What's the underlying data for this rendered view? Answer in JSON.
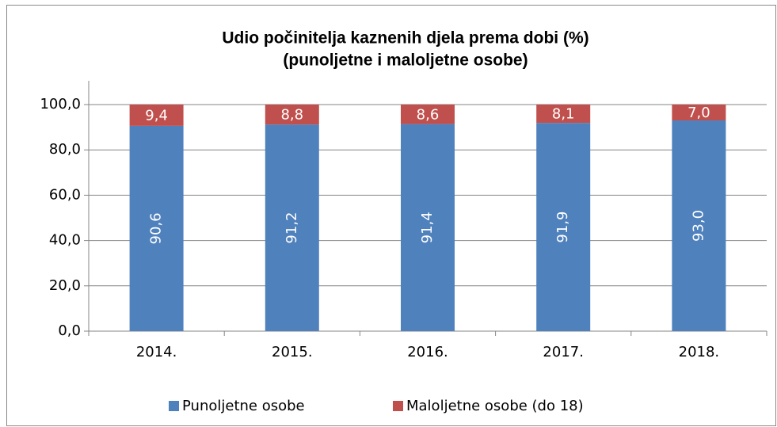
{
  "chart_data": {
    "type": "stacked_bar",
    "title": "Udio počinitelja kaznenih djela prema dobi  (%)",
    "subtitle": "(punoljetne i maloljetne osobe)",
    "categories": [
      "2014.",
      "2015.",
      "2016.",
      "2017.",
      "2018."
    ],
    "series": [
      {
        "name": "Punoljetne osobe",
        "color": "#4f81bd",
        "values": [
          90.6,
          91.2,
          91.4,
          91.9,
          93.0
        ],
        "value_labels": [
          "90,6",
          "91,2",
          "91,4",
          "91,9",
          "93,0"
        ]
      },
      {
        "name": "Maloljetne osobe (do 18)",
        "color": "#c0504d",
        "values": [
          9.4,
          8.8,
          8.6,
          8.1,
          7.0
        ],
        "value_labels": [
          "9,4",
          "8,8",
          "8,6",
          "8,1",
          "7,0"
        ]
      }
    ],
    "ylim": [
      0,
      100
    ],
    "yticks": [
      {
        "value": 0,
        "label": "0,0"
      },
      {
        "value": 20,
        "label": "20,0"
      },
      {
        "value": 40,
        "label": "40,0"
      },
      {
        "value": 60,
        "label": "60,0"
      },
      {
        "value": 80,
        "label": "80,0"
      },
      {
        "value": 100,
        "label": "100,0"
      }
    ],
    "grid": true,
    "legend": "bottom"
  }
}
